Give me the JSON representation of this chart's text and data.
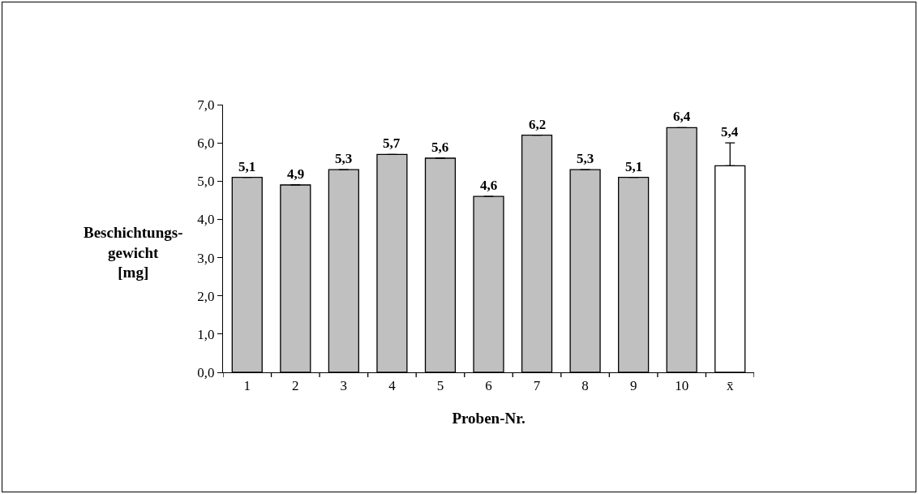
{
  "chart_data": {
    "type": "bar",
    "xlabel": "Proben-Nr.",
    "ylabel": "Beschichtungs-\ngewicht\n[mg]",
    "categories": [
      "1",
      "2",
      "3",
      "4",
      "5",
      "6",
      "7",
      "8",
      "9",
      "10",
      "x̄"
    ],
    "values": [
      5.1,
      4.9,
      5.3,
      5.7,
      5.6,
      4.6,
      6.2,
      5.3,
      5.1,
      6.4,
      5.4
    ],
    "colors": [
      "#c0c0c0",
      "#c0c0c0",
      "#c0c0c0",
      "#c0c0c0",
      "#c0c0c0",
      "#c0c0c0",
      "#c0c0c0",
      "#c0c0c0",
      "#c0c0c0",
      "#c0c0c0",
      "#ffffff"
    ],
    "value_labels": [
      "5,1",
      "4,9",
      "5,3",
      "5,7",
      "5,6",
      "4,6",
      "6,2",
      "5,3",
      "5,1",
      "6,4",
      "5,4"
    ],
    "errors": [
      null,
      null,
      null,
      null,
      null,
      null,
      null,
      null,
      null,
      null,
      [
        5.4,
        6.0
      ]
    ],
    "ylim": [
      0,
      7
    ],
    "yticks": [
      {
        "value": 0,
        "label": "0,0"
      },
      {
        "value": 1,
        "label": "1,0"
      },
      {
        "value": 2,
        "label": "2,0"
      },
      {
        "value": 3,
        "label": "3,0"
      },
      {
        "value": 4,
        "label": "4,0"
      },
      {
        "value": 5,
        "label": "5,0"
      },
      {
        "value": 6,
        "label": "6,0"
      },
      {
        "value": 7,
        "label": "7,0"
      }
    ],
    "grid": false
  }
}
